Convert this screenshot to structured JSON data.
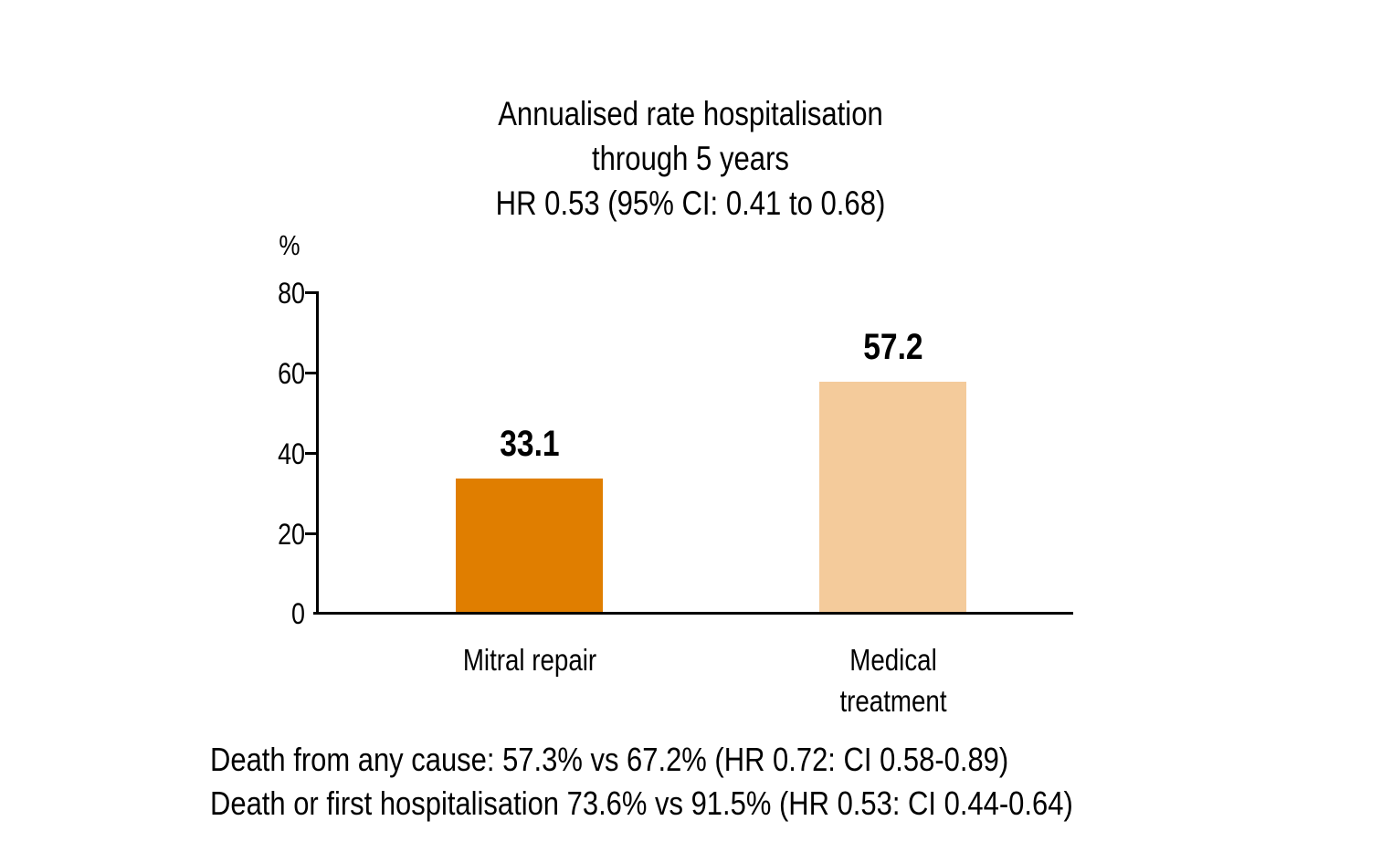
{
  "title": {
    "line1": "Annualised rate hospitalisation",
    "line2": "through 5 years",
    "line3": "HR 0.53 (95% CI: 0.41 to 0.68)"
  },
  "chart_data": {
    "type": "bar",
    "title": "Annualised rate hospitalisation through 5 years HR 0.53 (95% CI: 0.41 to 0.68)",
    "categories": [
      "Mitral repair",
      "Medical\ntreatment"
    ],
    "values": [
      33.1,
      57.2
    ],
    "value_labels": [
      "33.1",
      "57.2"
    ],
    "xlabel": "",
    "ylabel": "%",
    "ylim": [
      0,
      80
    ],
    "ytick_step": 20,
    "yticks": [
      "80",
      "60",
      "40",
      "20",
      "0"
    ],
    "bar_colors": [
      "#e07e00",
      "#f4cb9b"
    ],
    "axis_color": "#000000",
    "text_color": "#000000",
    "background": "#ffffff",
    "grid": false,
    "legend": false
  },
  "footnotes": {
    "line1": "Death from any cause: 57.3% vs 67.2% (HR 0.72: CI 0.58-0.89)",
    "line2": "Death or first hospitalisation 73.6% vs 91.5% (HR 0.53: CI 0.44-0.64)"
  }
}
